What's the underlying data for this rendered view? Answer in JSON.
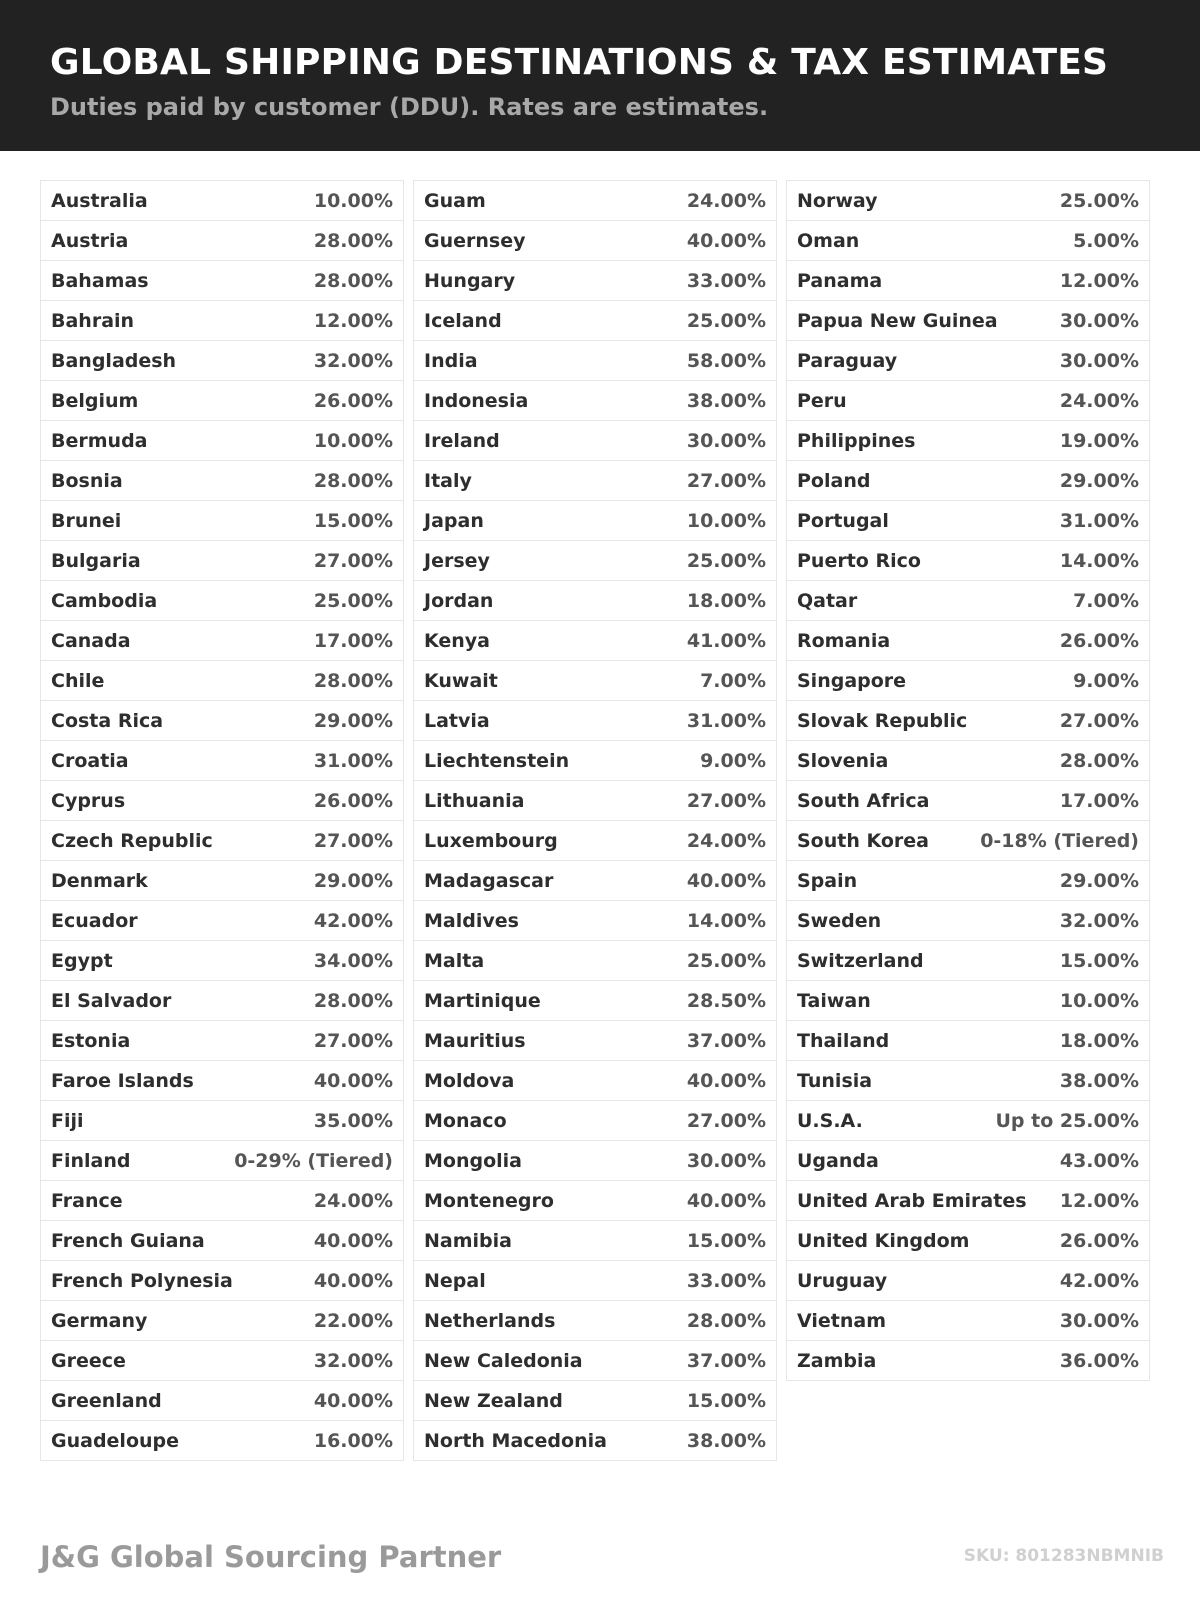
{
  "header": {
    "title": "GLOBAL SHIPPING DESTINATIONS & TAX ESTIMATES",
    "subtitle": "Duties paid by customer (DDU). Rates are estimates."
  },
  "columns": [
    [
      [
        "Australia",
        "10.00%"
      ],
      [
        "Austria",
        "28.00%"
      ],
      [
        "Bahamas",
        "28.00%"
      ],
      [
        "Bahrain",
        "12.00%"
      ],
      [
        "Bangladesh",
        "32.00%"
      ],
      [
        "Belgium",
        "26.00%"
      ],
      [
        "Bermuda",
        "10.00%"
      ],
      [
        "Bosnia",
        "28.00%"
      ],
      [
        "Brunei",
        "15.00%"
      ],
      [
        "Bulgaria",
        "27.00%"
      ],
      [
        "Cambodia",
        "25.00%"
      ],
      [
        "Canada",
        "17.00%"
      ],
      [
        "Chile",
        "28.00%"
      ],
      [
        "Costa Rica",
        "29.00%"
      ],
      [
        "Croatia",
        "31.00%"
      ],
      [
        "Cyprus",
        "26.00%"
      ],
      [
        "Czech Republic",
        "27.00%"
      ],
      [
        "Denmark",
        "29.00%"
      ],
      [
        "Ecuador",
        "42.00%"
      ],
      [
        "Egypt",
        "34.00%"
      ],
      [
        "El Salvador",
        "28.00%"
      ],
      [
        "Estonia",
        "27.00%"
      ],
      [
        "Faroe Islands",
        "40.00%"
      ],
      [
        "Fiji",
        "35.00%"
      ],
      [
        "Finland",
        "0-29% (Tiered)"
      ],
      [
        "France",
        "24.00%"
      ],
      [
        "French Guiana",
        "40.00%"
      ],
      [
        "French Polynesia",
        "40.00%"
      ],
      [
        "Germany",
        "22.00%"
      ],
      [
        "Greece",
        "32.00%"
      ],
      [
        "Greenland",
        "40.00%"
      ],
      [
        "Guadeloupe",
        "16.00%"
      ]
    ],
    [
      [
        "Guam",
        "24.00%"
      ],
      [
        "Guernsey",
        "40.00%"
      ],
      [
        "Hungary",
        "33.00%"
      ],
      [
        "Iceland",
        "25.00%"
      ],
      [
        "India",
        "58.00%"
      ],
      [
        "Indonesia",
        "38.00%"
      ],
      [
        "Ireland",
        "30.00%"
      ],
      [
        "Italy",
        "27.00%"
      ],
      [
        "Japan",
        "10.00%"
      ],
      [
        "Jersey",
        "25.00%"
      ],
      [
        "Jordan",
        "18.00%"
      ],
      [
        "Kenya",
        "41.00%"
      ],
      [
        "Kuwait",
        "7.00%"
      ],
      [
        "Latvia",
        "31.00%"
      ],
      [
        "Liechtenstein",
        "9.00%"
      ],
      [
        "Lithuania",
        "27.00%"
      ],
      [
        "Luxembourg",
        "24.00%"
      ],
      [
        "Madagascar",
        "40.00%"
      ],
      [
        "Maldives",
        "14.00%"
      ],
      [
        "Malta",
        "25.00%"
      ],
      [
        "Martinique",
        "28.50%"
      ],
      [
        "Mauritius",
        "37.00%"
      ],
      [
        "Moldova",
        "40.00%"
      ],
      [
        "Monaco",
        "27.00%"
      ],
      [
        "Mongolia",
        "30.00%"
      ],
      [
        "Montenegro",
        "40.00%"
      ],
      [
        "Namibia",
        "15.00%"
      ],
      [
        "Nepal",
        "33.00%"
      ],
      [
        "Netherlands",
        "28.00%"
      ],
      [
        "New Caledonia",
        "37.00%"
      ],
      [
        "New Zealand",
        "15.00%"
      ],
      [
        "North Macedonia",
        "38.00%"
      ]
    ],
    [
      [
        "Norway",
        "25.00%"
      ],
      [
        "Oman",
        "5.00%"
      ],
      [
        "Panama",
        "12.00%"
      ],
      [
        "Papua New Guinea",
        "30.00%"
      ],
      [
        "Paraguay",
        "30.00%"
      ],
      [
        "Peru",
        "24.00%"
      ],
      [
        "Philippines",
        "19.00%"
      ],
      [
        "Poland",
        "29.00%"
      ],
      [
        "Portugal",
        "31.00%"
      ],
      [
        "Puerto Rico",
        "14.00%"
      ],
      [
        "Qatar",
        "7.00%"
      ],
      [
        "Romania",
        "26.00%"
      ],
      [
        "Singapore",
        "9.00%"
      ],
      [
        "Slovak Republic",
        "27.00%"
      ],
      [
        "Slovenia",
        "28.00%"
      ],
      [
        "South Africa",
        "17.00%"
      ],
      [
        "South Korea",
        "0-18% (Tiered)"
      ],
      [
        "Spain",
        "29.00%"
      ],
      [
        "Sweden",
        "32.00%"
      ],
      [
        "Switzerland",
        "15.00%"
      ],
      [
        "Taiwan",
        "10.00%"
      ],
      [
        "Thailand",
        "18.00%"
      ],
      [
        "Tunisia",
        "38.00%"
      ],
      [
        "U.S.A.",
        "Up to 25.00%"
      ],
      [
        "Uganda",
        "43.00%"
      ],
      [
        "United Arab Emirates",
        "12.00%"
      ],
      [
        "United Kingdom",
        "26.00%"
      ],
      [
        "Uruguay",
        "42.00%"
      ],
      [
        "Vietnam",
        "30.00%"
      ],
      [
        "Zambia",
        "36.00%"
      ]
    ]
  ],
  "footer": {
    "brand": "J&G Global Sourcing Partner",
    "sku": "SKU: 801283NBMNIB"
  }
}
